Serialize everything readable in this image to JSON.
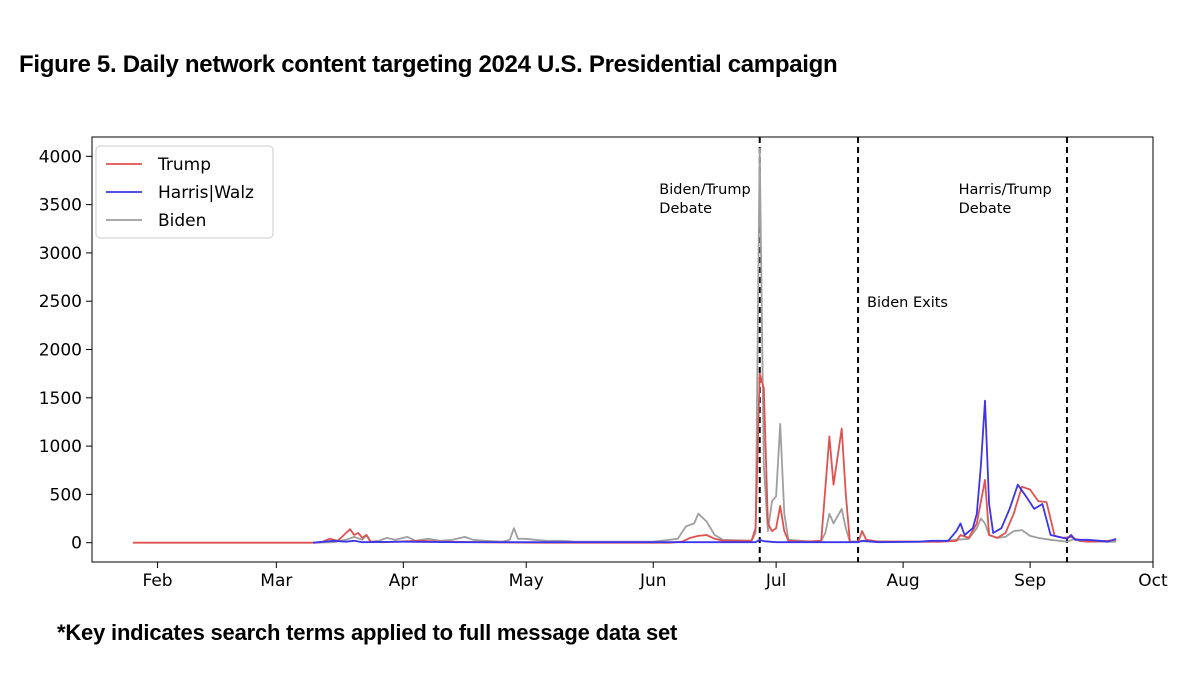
{
  "title": "Figure 5. Daily network content targeting 2024 U.S. Presidential campaign",
  "footnote": "*Key indicates search terms applied to full message data set",
  "colors": {
    "trump": "#e0524f",
    "harris": "#3d35e8",
    "biden": "#9f9f9f"
  },
  "chart_data": {
    "type": "line",
    "title": "Figure 5. Daily network content targeting 2024 U.S. Presidential campaign",
    "xlabel": "",
    "ylabel": "",
    "ylim": [
      -200,
      4200
    ],
    "xlim": [
      "2024-01-16",
      "2024-10-01"
    ],
    "yticks": [
      0,
      500,
      1000,
      1500,
      2000,
      2500,
      3000,
      3500,
      4000
    ],
    "xticks": [
      {
        "label": "Feb",
        "date": "2024-02-01"
      },
      {
        "label": "Mar",
        "date": "2024-03-01"
      },
      {
        "label": "Apr",
        "date": "2024-04-01"
      },
      {
        "label": "May",
        "date": "2024-05-01"
      },
      {
        "label": "Jun",
        "date": "2024-06-01"
      },
      {
        "label": "Jul",
        "date": "2024-07-01"
      },
      {
        "label": "Aug",
        "date": "2024-08-01"
      },
      {
        "label": "Sep",
        "date": "2024-09-01"
      },
      {
        "label": "Oct",
        "date": "2024-10-01"
      }
    ],
    "legend_position": "top-left",
    "events": [
      {
        "date": "2024-06-27",
        "label_lines": [
          "Biden/Trump",
          "Debate"
        ],
        "label_side": "left"
      },
      {
        "date": "2024-07-21",
        "label_lines": [
          "Biden Exits"
        ],
        "label_side": "right"
      },
      {
        "date": "2024-09-10",
        "label_lines": [
          "Harris/Trump",
          "Debate"
        ],
        "label_side": "left"
      }
    ],
    "series": [
      {
        "name": "Trump",
        "color_key": "trump",
        "points": [
          [
            "2024-01-26",
            0
          ],
          [
            "2024-03-10",
            0
          ],
          [
            "2024-03-12",
            5
          ],
          [
            "2024-03-14",
            40
          ],
          [
            "2024-03-16",
            20
          ],
          [
            "2024-03-18",
            100
          ],
          [
            "2024-03-19",
            140
          ],
          [
            "2024-03-20",
            80
          ],
          [
            "2024-03-21",
            100
          ],
          [
            "2024-03-22",
            50
          ],
          [
            "2024-03-23",
            80
          ],
          [
            "2024-03-24",
            10
          ],
          [
            "2024-03-27",
            5
          ],
          [
            "2024-04-05",
            20
          ],
          [
            "2024-04-10",
            10
          ],
          [
            "2024-04-20",
            5
          ],
          [
            "2024-05-05",
            0
          ],
          [
            "2024-06-05",
            0
          ],
          [
            "2024-06-08",
            10
          ],
          [
            "2024-06-10",
            50
          ],
          [
            "2024-06-12",
            70
          ],
          [
            "2024-06-14",
            80
          ],
          [
            "2024-06-16",
            40
          ],
          [
            "2024-06-18",
            20
          ],
          [
            "2024-06-25",
            20
          ],
          [
            "2024-06-26",
            150
          ],
          [
            "2024-06-27",
            1750
          ],
          [
            "2024-06-28",
            1600
          ],
          [
            "2024-06-29",
            200
          ],
          [
            "2024-06-30",
            120
          ],
          [
            "2024-07-01",
            150
          ],
          [
            "2024-07-02",
            380
          ],
          [
            "2024-07-03",
            120
          ],
          [
            "2024-07-04",
            20
          ],
          [
            "2024-07-08",
            10
          ],
          [
            "2024-07-12",
            20
          ],
          [
            "2024-07-14",
            1100
          ],
          [
            "2024-07-15",
            600
          ],
          [
            "2024-07-17",
            1180
          ],
          [
            "2024-07-18",
            500
          ],
          [
            "2024-07-19",
            10
          ],
          [
            "2024-07-21",
            5
          ],
          [
            "2024-07-22",
            120
          ],
          [
            "2024-07-23",
            30
          ],
          [
            "2024-07-26",
            10
          ],
          [
            "2024-08-05",
            10
          ],
          [
            "2024-08-10",
            10
          ],
          [
            "2024-08-14",
            20
          ],
          [
            "2024-08-15",
            80
          ],
          [
            "2024-08-17",
            50
          ],
          [
            "2024-08-19",
            200
          ],
          [
            "2024-08-21",
            650
          ],
          [
            "2024-08-22",
            80
          ],
          [
            "2024-08-24",
            50
          ],
          [
            "2024-08-26",
            100
          ],
          [
            "2024-08-28",
            300
          ],
          [
            "2024-08-30",
            580
          ],
          [
            "2024-09-01",
            550
          ],
          [
            "2024-09-03",
            430
          ],
          [
            "2024-09-05",
            420
          ],
          [
            "2024-09-07",
            70
          ],
          [
            "2024-09-09",
            50
          ],
          [
            "2024-09-11",
            60
          ],
          [
            "2024-09-13",
            20
          ],
          [
            "2024-09-15",
            10
          ],
          [
            "2024-09-20",
            20
          ],
          [
            "2024-09-22",
            30
          ]
        ]
      },
      {
        "name": "Harris|Walz",
        "color_key": "harris",
        "points": [
          [
            "2024-03-10",
            0
          ],
          [
            "2024-03-15",
            20
          ],
          [
            "2024-03-18",
            10
          ],
          [
            "2024-03-20",
            20
          ],
          [
            "2024-03-22",
            5
          ],
          [
            "2024-04-01",
            10
          ],
          [
            "2024-04-15",
            5
          ],
          [
            "2024-05-01",
            5
          ],
          [
            "2024-06-01",
            5
          ],
          [
            "2024-06-26",
            5
          ],
          [
            "2024-06-27",
            30
          ],
          [
            "2024-06-28",
            15
          ],
          [
            "2024-07-01",
            5
          ],
          [
            "2024-07-15",
            5
          ],
          [
            "2024-07-21",
            5
          ],
          [
            "2024-07-22",
            20
          ],
          [
            "2024-07-23",
            15
          ],
          [
            "2024-07-26",
            5
          ],
          [
            "2024-08-05",
            10
          ],
          [
            "2024-08-08",
            20
          ],
          [
            "2024-08-12",
            20
          ],
          [
            "2024-08-14",
            120
          ],
          [
            "2024-08-15",
            200
          ],
          [
            "2024-08-16",
            80
          ],
          [
            "2024-08-18",
            150
          ],
          [
            "2024-08-19",
            300
          ],
          [
            "2024-08-20",
            800
          ],
          [
            "2024-08-21",
            1470
          ],
          [
            "2024-08-22",
            400
          ],
          [
            "2024-08-23",
            100
          ],
          [
            "2024-08-25",
            150
          ],
          [
            "2024-08-27",
            350
          ],
          [
            "2024-08-29",
            600
          ],
          [
            "2024-08-31",
            480
          ],
          [
            "2024-09-02",
            350
          ],
          [
            "2024-09-04",
            400
          ],
          [
            "2024-09-06",
            80
          ],
          [
            "2024-09-08",
            60
          ],
          [
            "2024-09-10",
            40
          ],
          [
            "2024-09-11",
            80
          ],
          [
            "2024-09-12",
            30
          ],
          [
            "2024-09-15",
            30
          ],
          [
            "2024-09-18",
            20
          ],
          [
            "2024-09-20",
            10
          ],
          [
            "2024-09-22",
            40
          ]
        ]
      },
      {
        "name": "Biden",
        "color_key": "biden",
        "points": [
          [
            "2024-03-10",
            0
          ],
          [
            "2024-03-15",
            5
          ],
          [
            "2024-03-18",
            30
          ],
          [
            "2024-03-20",
            60
          ],
          [
            "2024-03-22",
            30
          ],
          [
            "2024-03-23",
            80
          ],
          [
            "2024-03-24",
            10
          ],
          [
            "2024-03-26",
            20
          ],
          [
            "2024-03-28",
            50
          ],
          [
            "2024-03-30",
            30
          ],
          [
            "2024-04-02",
            60
          ],
          [
            "2024-04-04",
            20
          ],
          [
            "2024-04-07",
            40
          ],
          [
            "2024-04-10",
            20
          ],
          [
            "2024-04-13",
            30
          ],
          [
            "2024-04-16",
            60
          ],
          [
            "2024-04-18",
            30
          ],
          [
            "2024-04-21",
            20
          ],
          [
            "2024-04-25",
            10
          ],
          [
            "2024-04-27",
            30
          ],
          [
            "2024-04-28",
            150
          ],
          [
            "2024-04-29",
            40
          ],
          [
            "2024-05-01",
            40
          ],
          [
            "2024-05-03",
            30
          ],
          [
            "2024-05-06",
            20
          ],
          [
            "2024-05-10",
            20
          ],
          [
            "2024-05-13",
            10
          ],
          [
            "2024-05-20",
            10
          ],
          [
            "2024-06-01",
            10
          ],
          [
            "2024-06-05",
            30
          ],
          [
            "2024-06-07",
            40
          ],
          [
            "2024-06-09",
            170
          ],
          [
            "2024-06-11",
            200
          ],
          [
            "2024-06-12",
            300
          ],
          [
            "2024-06-14",
            220
          ],
          [
            "2024-06-16",
            80
          ],
          [
            "2024-06-18",
            30
          ],
          [
            "2024-06-25",
            20
          ],
          [
            "2024-06-26",
            100
          ],
          [
            "2024-06-27",
            4080
          ],
          [
            "2024-06-28",
            800
          ],
          [
            "2024-06-29",
            120
          ],
          [
            "2024-06-30",
            430
          ],
          [
            "2024-07-01",
            480
          ],
          [
            "2024-07-02",
            1230
          ],
          [
            "2024-07-03",
            300
          ],
          [
            "2024-07-04",
            30
          ],
          [
            "2024-07-10",
            10
          ],
          [
            "2024-07-12",
            20
          ],
          [
            "2024-07-13",
            100
          ],
          [
            "2024-07-14",
            300
          ],
          [
            "2024-07-15",
            200
          ],
          [
            "2024-07-17",
            350
          ],
          [
            "2024-07-18",
            150
          ],
          [
            "2024-07-19",
            10
          ],
          [
            "2024-07-22",
            15
          ],
          [
            "2024-08-05",
            10
          ],
          [
            "2024-08-10",
            10
          ],
          [
            "2024-08-14",
            30
          ],
          [
            "2024-08-17",
            40
          ],
          [
            "2024-08-19",
            150
          ],
          [
            "2024-08-20",
            250
          ],
          [
            "2024-08-21",
            200
          ],
          [
            "2024-08-22",
            80
          ],
          [
            "2024-08-24",
            50
          ],
          [
            "2024-08-26",
            60
          ],
          [
            "2024-08-28",
            120
          ],
          [
            "2024-08-30",
            130
          ],
          [
            "2024-09-01",
            70
          ],
          [
            "2024-09-03",
            50
          ],
          [
            "2024-09-06",
            30
          ],
          [
            "2024-09-10",
            10
          ],
          [
            "2024-09-12",
            40
          ],
          [
            "2024-09-15",
            10
          ],
          [
            "2024-09-22",
            10
          ]
        ]
      }
    ]
  }
}
